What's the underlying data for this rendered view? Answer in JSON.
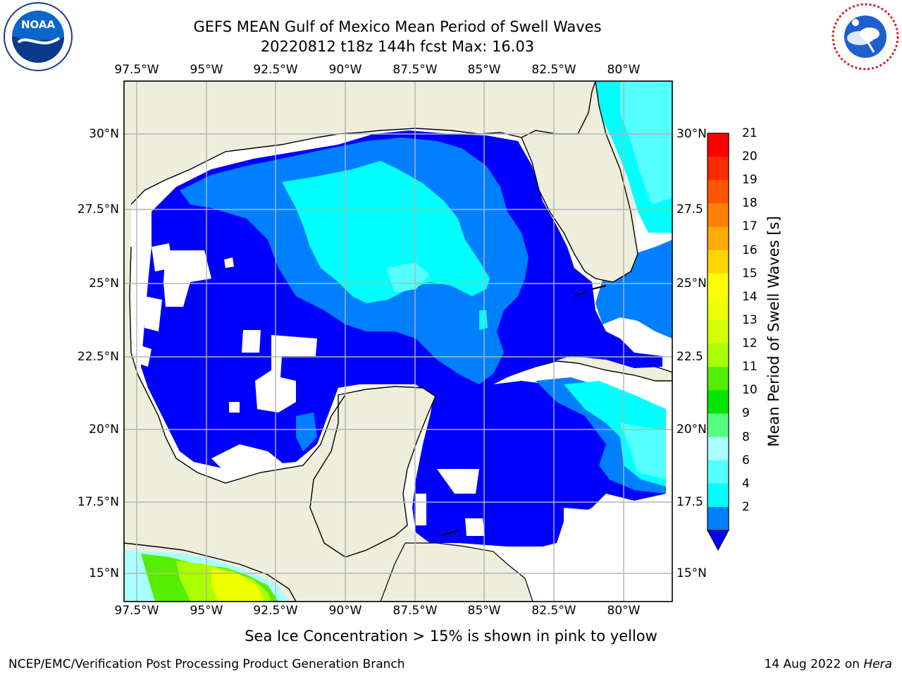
{
  "header": {
    "title_line1": "GEFS MEAN Gulf of Mexico Mean Period of Swell Waves",
    "title_line2": "20220812 t18z 144h fcst   Max: 16.03"
  },
  "logos": {
    "left": {
      "name": "noaa-logo",
      "text": "NOAA",
      "ring_text": "NATIONAL OCEANIC AND ATMOSPHERIC ADMINISTRATION · U.S. DEPARTMENT OF COMMERCE"
    },
    "right": {
      "name": "nws-logo",
      "ring_text": "NATIONAL WEATHER SERVICE"
    }
  },
  "map": {
    "lon_ticks": [
      "97.5°W",
      "95°W",
      "92.5°W",
      "90°W",
      "87.5°W",
      "85°W",
      "82.5°W",
      "80°W"
    ],
    "lat_ticks_left": [
      "30°N",
      "27.5°N",
      "25°N",
      "22.5°N",
      "20°N",
      "17.5°N",
      "15°N"
    ],
    "lat_ticks_right": [
      "30°N",
      "27.5",
      "25°N",
      "22.5",
      "20°N",
      "17.5",
      "15°N"
    ],
    "colors": {
      "land": "#eeeedd",
      "water_none": "#ffffff",
      "grid": "#b3b3b3",
      "coast": "#000000"
    }
  },
  "colorbar": {
    "title": "Mean Period of Swell Waves [s]",
    "labels": [
      "21",
      "20",
      "19",
      "18",
      "17",
      "16",
      "15",
      "14",
      "13",
      "12",
      "11",
      "10",
      "9",
      "8",
      "6",
      "4",
      "2"
    ],
    "colors": [
      "#ff0000",
      "#ff2a00",
      "#ff5500",
      "#ff8000",
      "#ffaa00",
      "#ffd500",
      "#ffff00",
      "#eeff00",
      "#d4ff00",
      "#aaff00",
      "#55ee00",
      "#00e600",
      "#55ff80",
      "#aaffff",
      "#55ffff",
      "#00ffff",
      "#0080ff"
    ],
    "extend_color": "#0000ff"
  },
  "footer": {
    "note": "Sea Ice Concentration > 15% is shown in pink to yellow",
    "credit_left": "NCEP/EMC/Verification Post Processing Product Generation Branch",
    "credit_date": "14 Aug 2022 on ",
    "credit_host": "Hera"
  }
}
